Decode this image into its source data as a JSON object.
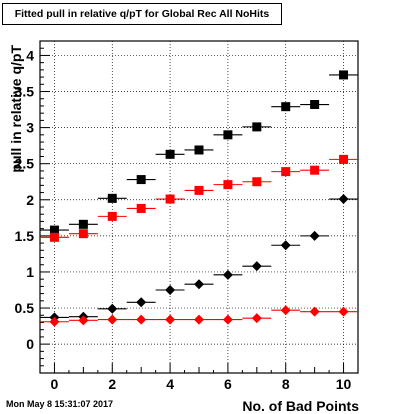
{
  "header": {
    "title": "Fitted pull in relative q/pT for Global Rec All NoHits"
  },
  "footer": {
    "timestamp": "Mon May  8 15:31:07 2017"
  },
  "chart_data": {
    "type": "scatter",
    "title": "Fitted pull in relative q/pT for Global Rec All NoHits",
    "xlabel": "No. of Bad Points",
    "ylabel": "pull in relative q/pT",
    "xlim": [
      -0.5,
      10.5
    ],
    "ylim": [
      -0.4,
      4.2
    ],
    "xticks": [
      0,
      2,
      4,
      6,
      8,
      10
    ],
    "yticks": [
      0,
      0.5,
      1,
      1.5,
      2,
      2.5,
      3,
      3.5,
      4
    ],
    "grid": true,
    "x": [
      0,
      1,
      2,
      3,
      4,
      5,
      6,
      7,
      8,
      9,
      10
    ],
    "x_error": 0.5,
    "series": [
      {
        "color": "#000000",
        "marker": "square",
        "values": [
          1.58,
          1.66,
          2.02,
          2.28,
          2.63,
          2.69,
          2.9,
          3.01,
          3.29,
          3.32,
          3.73
        ]
      },
      {
        "color": "#ff0000",
        "marker": "square",
        "values": [
          1.48,
          1.53,
          1.77,
          1.88,
          2.01,
          2.13,
          2.21,
          2.25,
          2.39,
          2.41,
          2.56
        ]
      },
      {
        "color": "#000000",
        "marker": "diamond",
        "values": [
          0.37,
          0.38,
          0.49,
          0.58,
          0.75,
          0.83,
          0.96,
          1.08,
          1.37,
          1.5,
          2.01
        ]
      },
      {
        "color": "#ff0000",
        "marker": "diamond",
        "values": [
          0.31,
          0.33,
          0.34,
          0.34,
          0.34,
          0.34,
          0.34,
          0.36,
          0.47,
          0.45,
          0.45
        ]
      }
    ]
  }
}
